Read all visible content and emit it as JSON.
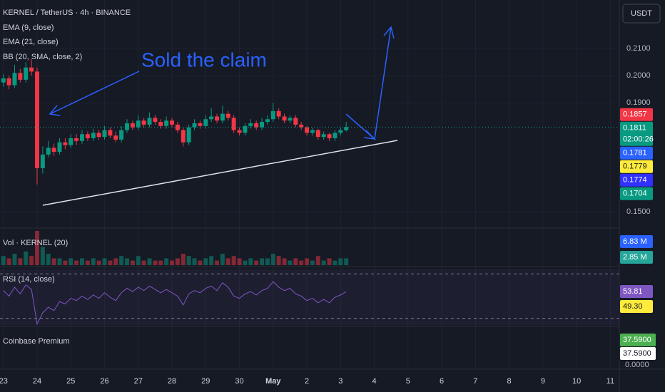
{
  "chart_data": {
    "type": "candlestick",
    "title": "KERNEL / TetherUS · 4h · BINANCE",
    "indicators": [
      "EMA (9, close)",
      "EMA (21, close)",
      "BB (20, SMA, close, 2)"
    ],
    "currency": "USDT",
    "annotation": "Sold the claim",
    "countdown": "02:00:26",
    "up_color": "#089981",
    "down_color": "#f23645",
    "open": [
      0.1975,
      0.199,
      0.1965,
      0.201,
      0.1985,
      0.203,
      0.2015,
      0.166,
      0.171,
      0.1735,
      0.172,
      0.1755,
      0.1745,
      0.177,
      0.176,
      0.1785,
      0.177,
      0.179,
      0.1775,
      0.18,
      0.178,
      0.1765,
      0.18,
      0.1825,
      0.181,
      0.1835,
      0.182,
      0.1845,
      0.183,
      0.1815,
      0.1835,
      0.182,
      0.18,
      0.1755,
      0.181,
      0.1825,
      0.1815,
      0.184,
      0.185,
      0.1835,
      0.186,
      0.1845,
      0.18,
      0.179,
      0.1815,
      0.1825,
      0.181,
      0.183,
      0.184,
      0.187,
      0.185,
      0.1835,
      0.1845,
      0.182,
      0.181,
      0.179,
      0.18,
      0.1775,
      0.1785,
      0.177,
      0.179,
      0.18
    ],
    "high": [
      0.2005,
      0.2,
      0.204,
      0.2025,
      0.205,
      0.206,
      0.203,
      0.174,
      0.176,
      0.175,
      0.177,
      0.177,
      0.1785,
      0.1785,
      0.18,
      0.1795,
      0.1805,
      0.18,
      0.1815,
      0.181,
      0.1795,
      0.1815,
      0.184,
      0.1835,
      0.1855,
      0.1845,
      0.1865,
      0.1855,
      0.184,
      0.185,
      0.1845,
      0.183,
      0.181,
      0.182,
      0.184,
      0.1835,
      0.1855,
      0.188,
      0.186,
      0.189,
      0.187,
      0.1855,
      0.181,
      0.1825,
      0.184,
      0.1835,
      0.1845,
      0.1855,
      0.19,
      0.188,
      0.186,
      0.1855,
      0.1855,
      0.183,
      0.1815,
      0.181,
      0.1805,
      0.1795,
      0.179,
      0.18,
      0.181,
      0.183
    ],
    "low": [
      0.196,
      0.195,
      0.1955,
      0.1975,
      0.1975,
      0.2,
      0.16,
      0.164,
      0.17,
      0.1705,
      0.171,
      0.173,
      0.1735,
      0.1745,
      0.175,
      0.176,
      0.176,
      0.1765,
      0.1765,
      0.177,
      0.1755,
      0.1755,
      0.179,
      0.18,
      0.18,
      0.181,
      0.181,
      0.182,
      0.1805,
      0.1805,
      0.181,
      0.179,
      0.174,
      0.1745,
      0.18,
      0.1805,
      0.1805,
      0.183,
      0.1825,
      0.1825,
      0.1835,
      0.179,
      0.178,
      0.178,
      0.1805,
      0.18,
      0.18,
      0.182,
      0.183,
      0.184,
      0.1825,
      0.1825,
      0.181,
      0.18,
      0.178,
      0.178,
      0.1765,
      0.1765,
      0.176,
      0.176,
      0.178,
      0.1795
    ],
    "close": [
      0.199,
      0.1965,
      0.201,
      0.1985,
      0.203,
      0.2015,
      0.166,
      0.171,
      0.1735,
      0.172,
      0.1755,
      0.1745,
      0.177,
      0.176,
      0.1785,
      0.177,
      0.179,
      0.1775,
      0.18,
      0.178,
      0.1765,
      0.18,
      0.1825,
      0.181,
      0.1835,
      0.182,
      0.1845,
      0.183,
      0.1815,
      0.1835,
      0.182,
      0.18,
      0.1755,
      0.181,
      0.1825,
      0.1815,
      0.184,
      0.185,
      0.1835,
      0.186,
      0.1845,
      0.18,
      0.179,
      0.1815,
      0.1825,
      0.181,
      0.183,
      0.184,
      0.187,
      0.185,
      0.1835,
      0.1845,
      0.182,
      0.181,
      0.179,
      0.18,
      0.1775,
      0.1785,
      0.177,
      0.179,
      0.18,
      0.1811
    ],
    "xlim": [
      -0.6,
      109.6
    ],
    "xticks": [
      {
        "value": 0,
        "label": "23"
      },
      {
        "value": 6,
        "label": "24"
      },
      {
        "value": 12,
        "label": "25"
      },
      {
        "value": 18,
        "label": "26"
      },
      {
        "value": 24,
        "label": "27"
      },
      {
        "value": 30,
        "label": "28"
      },
      {
        "value": 36,
        "label": "29"
      },
      {
        "value": 42,
        "label": "30"
      },
      {
        "value": 48,
        "label": "May"
      },
      {
        "value": 54,
        "label": "2"
      },
      {
        "value": 60,
        "label": "3"
      },
      {
        "value": 66,
        "label": "4"
      },
      {
        "value": 72,
        "label": "5"
      },
      {
        "value": 78,
        "label": "6"
      },
      {
        "value": 84,
        "label": "7"
      },
      {
        "value": 90,
        "label": "8"
      },
      {
        "value": 96,
        "label": "9"
      },
      {
        "value": 102,
        "label": "10"
      },
      {
        "value": 108,
        "label": "11"
      }
    ],
    "ylim": [
      0.144,
      0.2278
    ],
    "yticks": [
      {
        "value": 0.21,
        "label": "0.2100"
      },
      {
        "value": 0.2,
        "label": "0.2000"
      },
      {
        "value": 0.19,
        "label": "0.1900"
      },
      {
        "value": 0.15,
        "label": "0.1500"
      }
    ],
    "price_labels": [
      {
        "value": 0.1857,
        "color": "#f23645"
      },
      {
        "value": 0.1811,
        "color": "#089981"
      },
      {
        "value": 0.1781,
        "color": "#2962ff"
      },
      {
        "value": 0.1779,
        "color": "#ffeb3b"
      },
      {
        "value": 0.1774,
        "color": "#3030ff"
      },
      {
        "value": 0.1704,
        "color": "#089981"
      }
    ]
  },
  "volume": {
    "title": "Vol · KERNEL (20)",
    "ylim": [
      0,
      15
    ],
    "values": [
      4,
      3,
      5,
      3,
      6,
      4,
      15,
      8,
      5,
      3,
      3,
      2,
      3,
      2,
      3,
      2,
      3,
      2,
      3,
      2,
      3,
      4,
      3,
      2,
      4,
      2,
      3,
      2,
      2,
      3,
      2,
      3,
      5,
      4,
      3,
      2,
      3,
      4,
      2,
      5,
      3,
      4,
      3,
      2,
      3,
      2,
      3,
      3,
      5,
      4,
      3,
      2,
      3,
      2,
      3,
      2,
      4,
      2,
      3,
      2,
      3,
      3
    ],
    "labels": [
      {
        "value": 6.83,
        "label": "6.83 M",
        "color": "#2962ff"
      },
      {
        "value": 2.85,
        "label": "2.85 M",
        "color": "#26a69a"
      }
    ]
  },
  "rsi": {
    "title": "RSI (14, close)",
    "ylim": [
      24,
      74
    ],
    "levels": [
      70,
      30
    ],
    "color": "#7e57c2",
    "values": [
      55,
      50,
      58,
      52,
      60,
      56,
      25,
      35,
      40,
      37,
      45,
      43,
      48,
      46,
      50,
      47,
      51,
      48,
      53,
      49,
      46,
      53,
      57,
      54,
      58,
      55,
      59,
      56,
      53,
      56,
      53,
      50,
      42,
      52,
      55,
      53,
      57,
      59,
      55,
      62,
      58,
      50,
      48,
      52,
      54,
      51,
      55,
      57,
      63,
      58,
      55,
      57,
      52,
      50,
      46,
      48,
      44,
      47,
      44,
      49,
      51,
      54
    ],
    "labels": [
      {
        "value": 53.81,
        "color": "#7e57c2"
      },
      {
        "value": 49.3,
        "label": "49.30",
        "color": "#ffeb3b"
      }
    ]
  },
  "premium": {
    "title": "Coinbase Premium",
    "labels": [
      {
        "value": 37.59,
        "label": "37.5900",
        "color": "#4caf50"
      },
      {
        "value": 37.59,
        "label": "37.5900",
        "color": "#ffffff"
      }
    ],
    "ticks": [
      {
        "value": 0,
        "label": "0.0000"
      }
    ]
  }
}
